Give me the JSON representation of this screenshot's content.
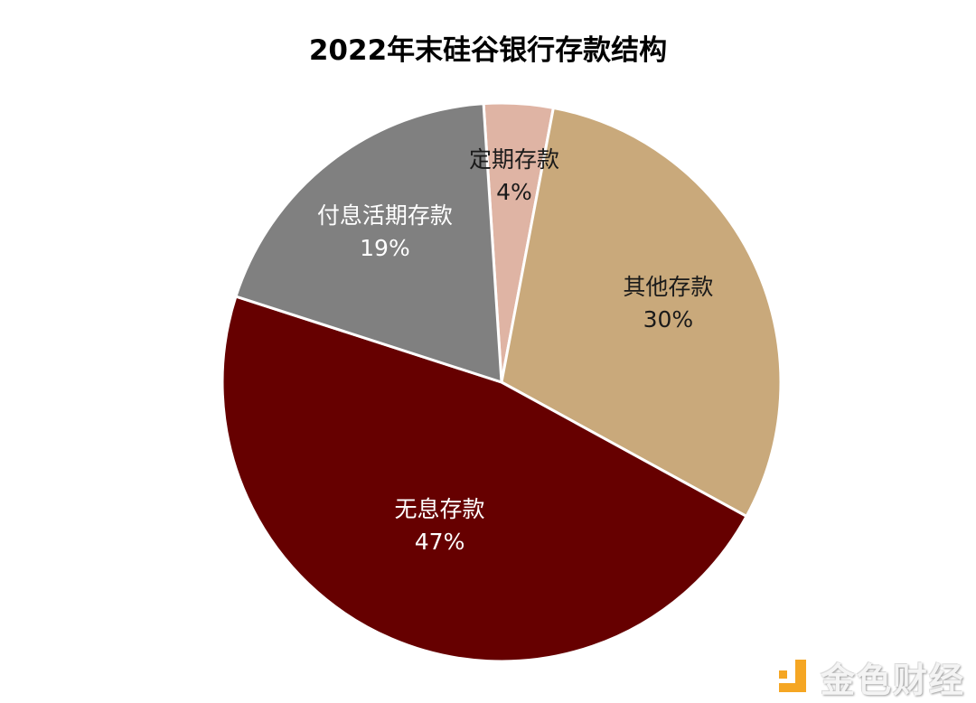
{
  "chart_data": {
    "type": "pie",
    "title": "2022年末硅谷银行存款结构",
    "start_angle_deg": -3.7,
    "direction": "clockwise",
    "slices": [
      {
        "label": "定期存款",
        "value": 4,
        "pct_label": "4%",
        "color": "#dfb4a4",
        "text_color": "#1a1a1a"
      },
      {
        "label": "其他存款",
        "value": 30,
        "pct_label": "30%",
        "color": "#c9a97b",
        "text_color": "#1a1a1a"
      },
      {
        "label": "无息存款",
        "value": 47,
        "pct_label": "47%",
        "color": "#660000",
        "text_color": "#ffffff"
      },
      {
        "label": "付息活期存款",
        "value": 19,
        "pct_label": "19%",
        "color": "#808080",
        "text_color": "#ffffff"
      }
    ],
    "legend": "none"
  },
  "watermark": {
    "text": "金色财经",
    "icon": "jinse-logo-icon",
    "accent": "#f5a623"
  }
}
